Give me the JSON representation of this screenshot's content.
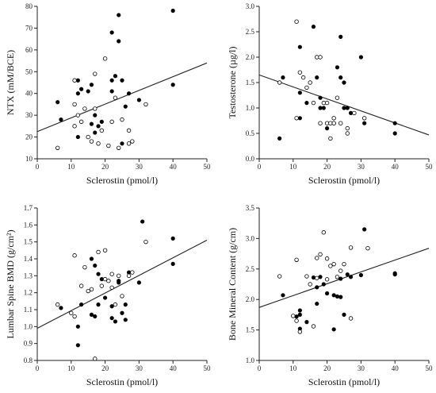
{
  "chart_data": [
    {
      "id": "ntx",
      "type": "scatter",
      "xlabel": "Sclerostin (pmol/l)",
      "ylabel": "NTX (mM/BCE)",
      "xlim": [
        0,
        50
      ],
      "ylim": [
        10,
        80
      ],
      "xticks": [
        "0",
        "10",
        "20",
        "30",
        "40",
        "50"
      ],
      "yticks": [
        "10",
        "20",
        "30",
        "40",
        "50",
        "60",
        "70",
        "80"
      ],
      "yticks_values": [
        10,
        20,
        30,
        40,
        50,
        60,
        70,
        80
      ],
      "fit_line": {
        "x": [
          0,
          50
        ],
        "y": [
          22.5,
          54.0
        ]
      },
      "series": [
        {
          "marker": "filled",
          "points": [
            [
              6,
              36
            ],
            [
              7,
              28
            ],
            [
              12,
              46
            ],
            [
              12,
              40
            ],
            [
              12,
              20
            ],
            [
              13,
              42
            ],
            [
              15,
              41
            ],
            [
              16,
              26
            ],
            [
              16,
              44
            ],
            [
              17,
              30
            ],
            [
              17,
              22
            ],
            [
              18,
              25
            ],
            [
              19,
              27
            ],
            [
              22,
              68
            ],
            [
              22,
              46
            ],
            [
              22,
              41
            ],
            [
              23,
              48
            ],
            [
              24,
              76
            ],
            [
              24,
              64
            ],
            [
              25,
              46
            ],
            [
              25,
              17
            ],
            [
              26,
              34
            ],
            [
              27,
              40
            ],
            [
              30,
              37
            ],
            [
              40,
              78
            ],
            [
              40,
              44
            ]
          ]
        },
        {
          "marker": "open",
          "points": [
            [
              6,
              15
            ],
            [
              11,
              46
            ],
            [
              11,
              35
            ],
            [
              11,
              25
            ],
            [
              12,
              30
            ],
            [
              13,
              27
            ],
            [
              14,
              33
            ],
            [
              15,
              20
            ],
            [
              16,
              18
            ],
            [
              17,
              49
            ],
            [
              17,
              33
            ],
            [
              18,
              17
            ],
            [
              19,
              23
            ],
            [
              20,
              56
            ],
            [
              21,
              16
            ],
            [
              22,
              27
            ],
            [
              23,
              38
            ],
            [
              24,
              15
            ],
            [
              25,
              28
            ],
            [
              27,
              23
            ],
            [
              27,
              17
            ],
            [
              28,
              18
            ],
            [
              32,
              35
            ]
          ]
        }
      ]
    },
    {
      "id": "testosterone",
      "type": "scatter",
      "xlabel": "Sclerostin (pmol/l)",
      "ylabel": "Testosterone (µg/l)",
      "xlim": [
        0,
        50
      ],
      "ylim": [
        0,
        3
      ],
      "xticks": [
        "0",
        "10",
        "20",
        "30",
        "40",
        "50"
      ],
      "yticks": [
        "0.0",
        "0.5",
        "1.0",
        "1.5",
        "2.0",
        "2.5",
        "3.0"
      ],
      "yticks_values": [
        0,
        0.5,
        1.0,
        1.5,
        2.0,
        2.5,
        3.0
      ],
      "fit_line": {
        "x": [
          0,
          50
        ],
        "y": [
          1.65,
          0.47
        ]
      },
      "series": [
        {
          "marker": "filled",
          "points": [
            [
              6,
              0.4
            ],
            [
              7,
              1.6
            ],
            [
              12,
              2.2
            ],
            [
              12,
              1.3
            ],
            [
              12,
              0.8
            ],
            [
              14,
              1.1
            ],
            [
              16,
              2.6
            ],
            [
              17,
              1.6
            ],
            [
              18,
              1.2
            ],
            [
              18,
              1.0
            ],
            [
              19,
              1.0
            ],
            [
              20,
              0.6
            ],
            [
              22,
              0.7
            ],
            [
              23,
              1.8
            ],
            [
              24,
              2.4
            ],
            [
              24,
              1.6
            ],
            [
              25,
              1.5
            ],
            [
              25,
              1.0
            ],
            [
              26,
              1.0
            ],
            [
              27,
              0.9
            ],
            [
              30,
              2.0
            ],
            [
              31,
              0.7
            ],
            [
              40,
              0.7
            ],
            [
              40,
              0.5
            ]
          ]
        },
        {
          "marker": "open",
          "points": [
            [
              6,
              1.5
            ],
            [
              11,
              2.7
            ],
            [
              11,
              0.8
            ],
            [
              12,
              1.7
            ],
            [
              13,
              1.6
            ],
            [
              14,
              1.4
            ],
            [
              15,
              1.5
            ],
            [
              16,
              1.1
            ],
            [
              17,
              2.0
            ],
            [
              18,
              2.0
            ],
            [
              18,
              0.7
            ],
            [
              19,
              1.1
            ],
            [
              20,
              1.1
            ],
            [
              20,
              0.7
            ],
            [
              21,
              0.7
            ],
            [
              21,
              0.4
            ],
            [
              22,
              0.8
            ],
            [
              22,
              0.7
            ],
            [
              23,
              1.2
            ],
            [
              24,
              0.7
            ],
            [
              26,
              0.6
            ],
            [
              26,
              0.5
            ],
            [
              28,
              0.9
            ],
            [
              31,
              0.8
            ]
          ]
        }
      ]
    },
    {
      "id": "bmd",
      "type": "scatter",
      "xlabel": "Sclerostin (pmol/l)",
      "ylabel": "Lumbar Spine BMD (g/cm²)",
      "xlim": [
        0,
        50
      ],
      "ylim": [
        0.8,
        1.7
      ],
      "xticks": [
        "0",
        "10",
        "20",
        "30",
        "40",
        "50"
      ],
      "yticks": [
        "0.8",
        "0.9",
        "1.0",
        "1.1",
        "1.2",
        "1.3",
        "1.4",
        "1.5",
        "1.6",
        "1.7"
      ],
      "yticks_values": [
        0.8,
        0.9,
        1.0,
        1.1,
        1.2,
        1.3,
        1.4,
        1.5,
        1.6,
        1.7
      ],
      "fit_line": {
        "x": [
          0,
          50
        ],
        "y": [
          0.99,
          1.51
        ]
      },
      "series": [
        {
          "marker": "filled",
          "points": [
            [
              7,
              1.11
            ],
            [
              12,
              1.0
            ],
            [
              12,
              0.89
            ],
            [
              13,
              1.13
            ],
            [
              16,
              1.4
            ],
            [
              16,
              1.07
            ],
            [
              17,
              1.36
            ],
            [
              17,
              1.06
            ],
            [
              18,
              1.31
            ],
            [
              18,
              1.13
            ],
            [
              19,
              1.28
            ],
            [
              20,
              1.17
            ],
            [
              22,
              1.12
            ],
            [
              22,
              1.05
            ],
            [
              23,
              1.03
            ],
            [
              24,
              1.27
            ],
            [
              24,
              1.26
            ],
            [
              25,
              1.08
            ],
            [
              26,
              1.13
            ],
            [
              26,
              1.04
            ],
            [
              27,
              1.32
            ],
            [
              30,
              1.26
            ],
            [
              31,
              1.62
            ],
            [
              40,
              1.52
            ],
            [
              40,
              1.37
            ]
          ]
        },
        {
          "marker": "open",
          "points": [
            [
              6,
              1.13
            ],
            [
              10,
              1.08
            ],
            [
              11,
              1.06
            ],
            [
              11,
              1.42
            ],
            [
              13,
              1.24
            ],
            [
              14,
              1.35
            ],
            [
              15,
              1.21
            ],
            [
              16,
              1.22
            ],
            [
              17,
              0.81
            ],
            [
              18,
              1.44
            ],
            [
              19,
              1.24
            ],
            [
              20,
              1.45
            ],
            [
              20,
              1.28
            ],
            [
              21,
              1.27
            ],
            [
              22,
              1.31
            ],
            [
              22,
              1.23
            ],
            [
              23,
              1.13
            ],
            [
              24,
              1.3
            ],
            [
              25,
              1.18
            ],
            [
              27,
              1.3
            ],
            [
              28,
              1.32
            ],
            [
              32,
              1.5
            ]
          ]
        }
      ]
    },
    {
      "id": "bmc",
      "type": "scatter",
      "xlabel": "Sclerostin (pmol/l)",
      "ylabel": "Bone Mineral Content (g/cm)",
      "xlim": [
        0,
        50
      ],
      "ylim": [
        1.0,
        3.5
      ],
      "xticks": [
        "0",
        "10",
        "20",
        "30",
        "40",
        "50"
      ],
      "yticks": [
        "1.0",
        "1.5",
        "2.0",
        "2.5",
        "3.0",
        "3.5"
      ],
      "yticks_values": [
        1.0,
        1.5,
        2.0,
        2.5,
        3.0,
        3.5
      ],
      "fit_line": {
        "x": [
          0,
          50
        ],
        "y": [
          1.87,
          2.84
        ]
      },
      "series": [
        {
          "marker": "filled",
          "points": [
            [
              7,
              2.07
            ],
            [
              11,
              1.72
            ],
            [
              12,
              1.82
            ],
            [
              12,
              1.75
            ],
            [
              12,
              1.52
            ],
            [
              14,
              1.63
            ],
            [
              16,
              2.36
            ],
            [
              17,
              2.2
            ],
            [
              17,
              1.93
            ],
            [
              18,
              2.37
            ],
            [
              19,
              2.25
            ],
            [
              20,
              2.1
            ],
            [
              22,
              2.07
            ],
            [
              22,
              1.51
            ],
            [
              23,
              2.05
            ],
            [
              24,
              2.34
            ],
            [
              24,
              2.04
            ],
            [
              25,
              1.75
            ],
            [
              26,
              2.41
            ],
            [
              27,
              2.37
            ],
            [
              30,
              2.4
            ],
            [
              31,
              3.15
            ],
            [
              40,
              2.43
            ],
            [
              40,
              2.41
            ]
          ]
        },
        {
          "marker": "open",
          "points": [
            [
              6,
              2.38
            ],
            [
              10,
              1.73
            ],
            [
              11,
              2.65
            ],
            [
              11,
              1.65
            ],
            [
              12,
              1.47
            ],
            [
              14,
              2.38
            ],
            [
              15,
              2.25
            ],
            [
              16,
              1.56
            ],
            [
              17,
              2.68
            ],
            [
              17,
              2.35
            ],
            [
              18,
              2.74
            ],
            [
              19,
              3.1
            ],
            [
              20,
              2.67
            ],
            [
              20,
              2.33
            ],
            [
              21,
              2.55
            ],
            [
              22,
              2.58
            ],
            [
              23,
              2.37
            ],
            [
              24,
              2.47
            ],
            [
              25,
              2.58
            ],
            [
              27,
              2.85
            ],
            [
              27,
              1.69
            ],
            [
              32,
              2.84
            ]
          ]
        }
      ]
    }
  ]
}
